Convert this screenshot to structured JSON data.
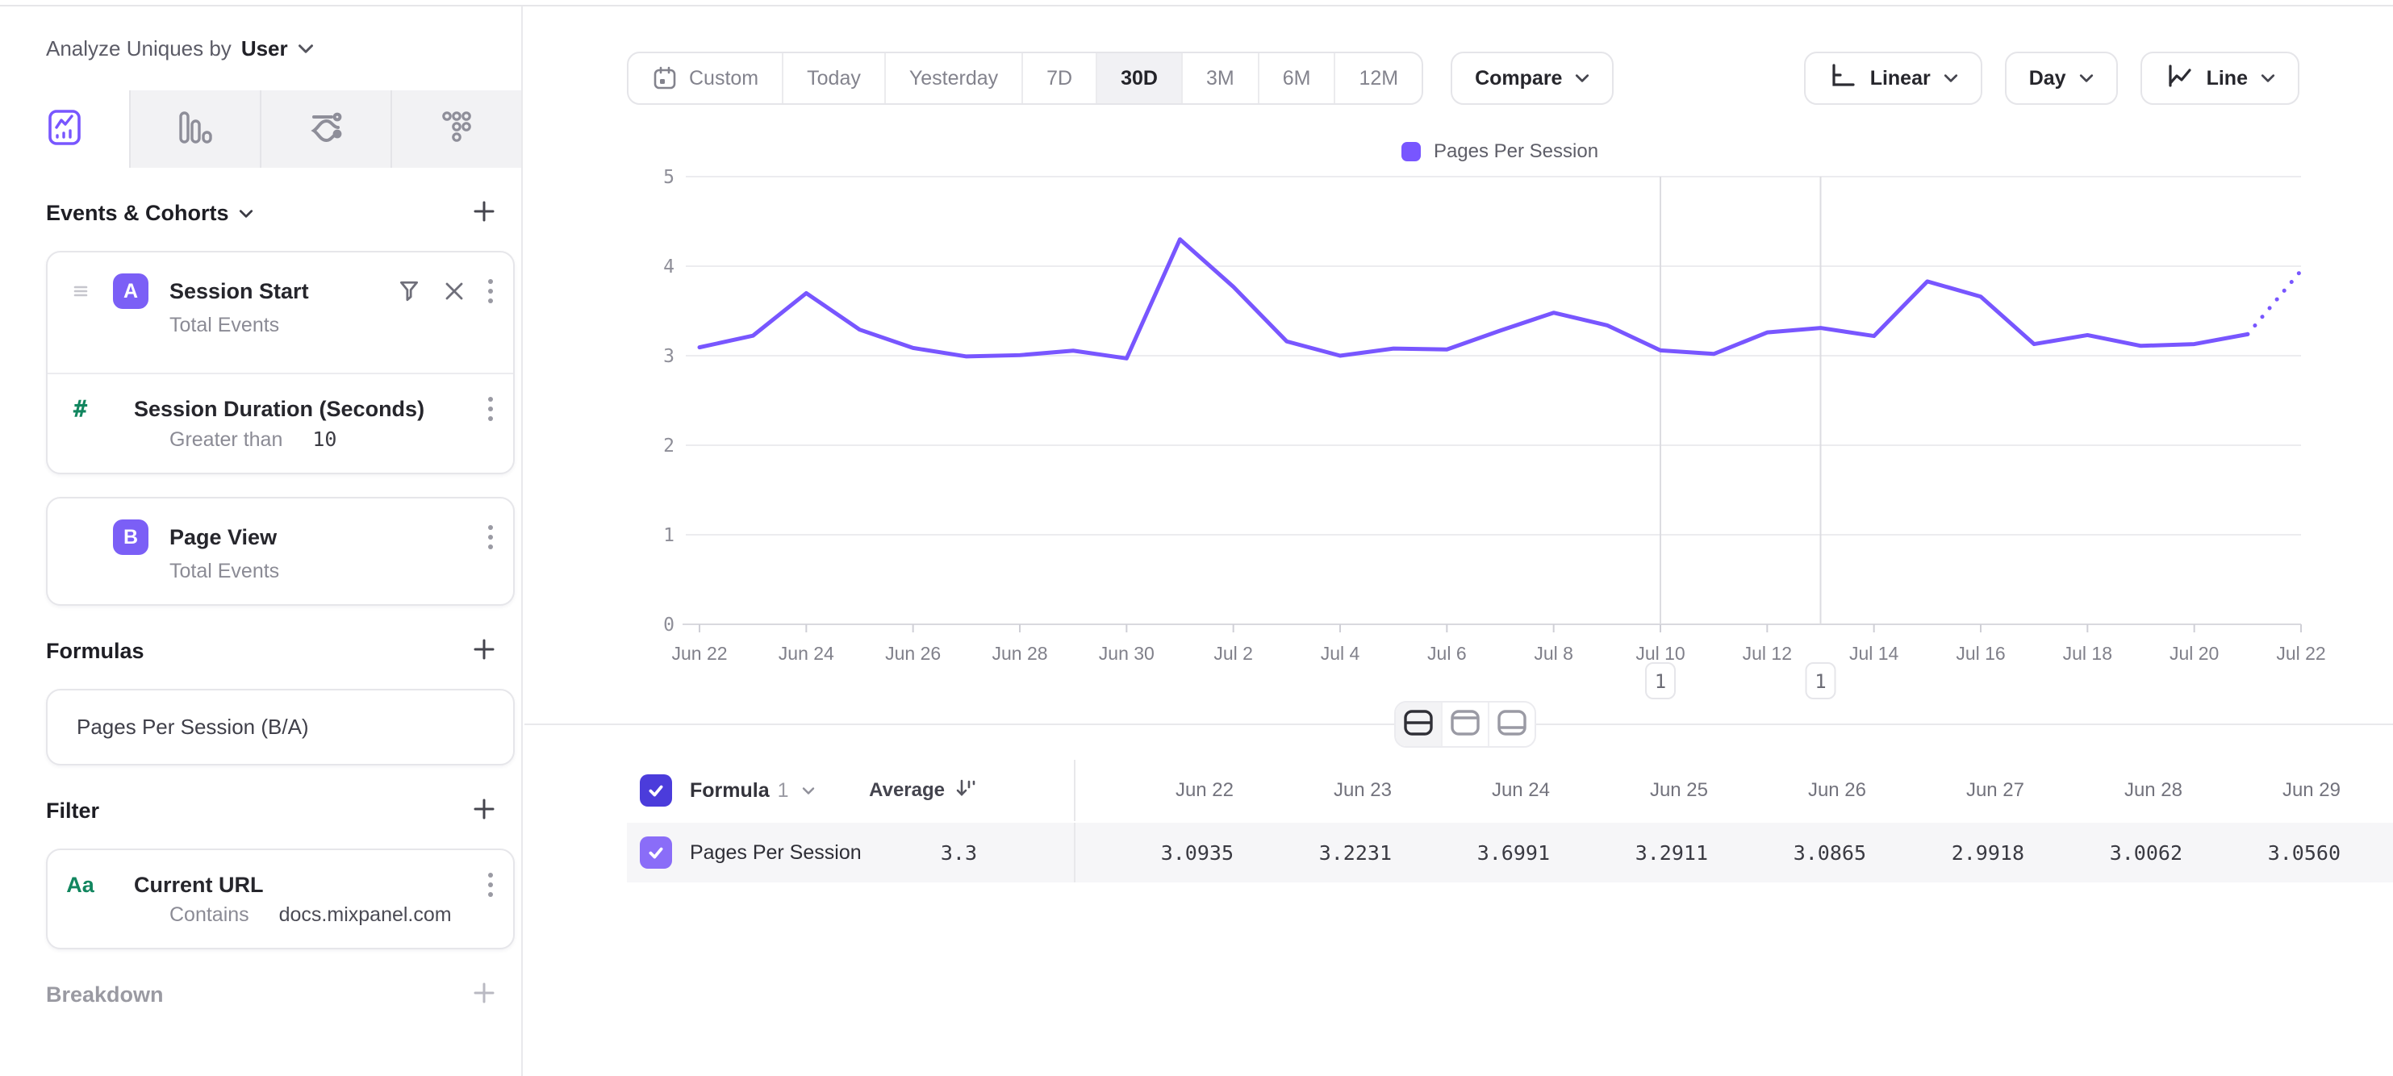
{
  "header": {
    "analyze_label": "Analyze Uniques by",
    "analyze_value": "User"
  },
  "sidebar": {
    "tabs": [
      {
        "icon": "insights-chart-icon",
        "active": true
      },
      {
        "icon": "bar-chart-icon",
        "active": false
      },
      {
        "icon": "flows-icon",
        "active": false
      },
      {
        "icon": "retention-grid-icon",
        "active": false
      }
    ],
    "events_section": {
      "title": "Events & Cohorts"
    },
    "event_a": {
      "badge": "A",
      "title": "Session Start",
      "subtitle": "Total Events"
    },
    "event_a_property": {
      "icon": "#",
      "title": "Session Duration (Seconds)",
      "operator": "Greater than",
      "value": "10"
    },
    "event_b": {
      "badge": "B",
      "title": "Page View",
      "subtitle": "Total Events"
    },
    "formulas_section": {
      "title": "Formulas"
    },
    "formula_item": {
      "title": "Pages Per Session (B/A)"
    },
    "filter_section": {
      "title": "Filter"
    },
    "filter_item": {
      "icon": "Aa",
      "title": "Current URL",
      "operator": "Contains",
      "value": "docs.mixpanel.com"
    },
    "breakdown_section": {
      "title": "Breakdown"
    }
  },
  "toolbar": {
    "date_ranges": [
      "Custom",
      "Today",
      "Yesterday",
      "7D",
      "30D",
      "3M",
      "6M",
      "12M"
    ],
    "selected_range": "30D",
    "compare_label": "Compare",
    "scale_label": "Linear",
    "interval_label": "Day",
    "chart_type_label": "Line"
  },
  "chart_data": {
    "type": "line",
    "title": "",
    "legend": "Pages Per Session",
    "legend_position": "top",
    "grid": "horizontal",
    "ylim": [
      0,
      5
    ],
    "yticks": [
      0,
      1,
      2,
      3,
      4,
      5
    ],
    "categories": [
      "Jun 22",
      "Jun 23",
      "Jun 24",
      "Jun 25",
      "Jun 26",
      "Jun 27",
      "Jun 28",
      "Jun 29",
      "Jun 30",
      "Jul 1",
      "Jul 2",
      "Jul 3",
      "Jul 4",
      "Jul 5",
      "Jul 6",
      "Jul 7",
      "Jul 8",
      "Jul 9",
      "Jul 10",
      "Jul 11",
      "Jul 12",
      "Jul 13",
      "Jul 14",
      "Jul 15",
      "Jul 16",
      "Jul 17",
      "Jul 18",
      "Jul 19",
      "Jul 20",
      "Jul 21",
      "Jul 22"
    ],
    "x_tick_labels": [
      "Jun 22",
      "Jun 24",
      "Jun 26",
      "Jun 28",
      "Jun 30",
      "Jul 2",
      "Jul 4",
      "Jul 6",
      "Jul 8",
      "Jul 10",
      "Jul 12",
      "Jul 14",
      "Jul 16",
      "Jul 18",
      "Jul 20",
      "Jul 22"
    ],
    "series": [
      {
        "name": "Pages Per Session",
        "color": "#7856ff",
        "values": [
          3.0935,
          3.2231,
          3.6991,
          3.2911,
          3.0865,
          2.9918,
          3.0062,
          3.056,
          2.97,
          4.3,
          3.77,
          3.16,
          3.0,
          3.08,
          3.07,
          3.28,
          3.48,
          3.34,
          3.06,
          3.02,
          3.26,
          3.31,
          3.22,
          3.83,
          3.66,
          3.13,
          3.23,
          3.11,
          3.13,
          3.24,
          3.95
        ]
      }
    ],
    "last_segment_style": "dotted",
    "annotations": [
      {
        "date": "Jul 10",
        "label": "1"
      },
      {
        "date": "Jul 13",
        "label": "1"
      }
    ]
  },
  "table": {
    "header_checkbox_checked": true,
    "row_checkbox_checked": true,
    "name_header": "Formula",
    "name_header_index": "1",
    "average_label": "Average",
    "columns": [
      "Jun 22",
      "Jun 23",
      "Jun 24",
      "Jun 25",
      "Jun 26",
      "Jun 27",
      "Jun 28",
      "Jun 29"
    ],
    "rows": [
      {
        "name": "Pages Per Session",
        "average": "3.3",
        "values": [
          "3.0935",
          "3.2231",
          "3.6991",
          "3.2911",
          "3.0865",
          "2.9918",
          "3.0062",
          "3.0560"
        ]
      }
    ]
  },
  "colors": {
    "accent": "#7856ff",
    "badge": "#7b5ff6",
    "header_checkbox": "#4b3cdb",
    "row_checkbox": "#8a6df8",
    "green_icon": "#12865f",
    "grid": "#ececef",
    "axis": "#d9d9de"
  }
}
